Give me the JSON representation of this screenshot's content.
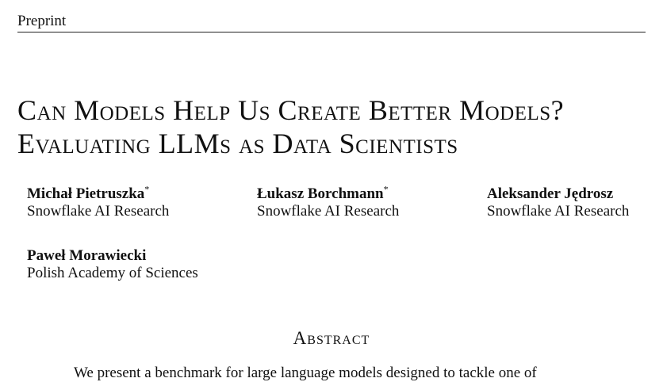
{
  "header": {
    "running_head": "Preprint"
  },
  "paper": {
    "title_line1": "Can Models Help Us Create Better Models?",
    "title_line2": "Evaluating LLMs as Data Scientists",
    "authors": [
      {
        "name": "Michał Pietruszka",
        "mark": "*",
        "affiliation": "Snowflake AI Research"
      },
      {
        "name": "Łukasz Borchmann",
        "mark": "*",
        "affiliation": "Snowflake AI Research"
      },
      {
        "name": "Aleksander Jędrosz",
        "mark": "",
        "affiliation": "Snowflake AI Research"
      },
      {
        "name": "Paweł Morawiecki",
        "mark": "",
        "affiliation": "Polish Academy of Sciences"
      }
    ],
    "abstract_heading": "Abstract",
    "abstract_first_line": "We present a benchmark for large language models designed to tackle one of"
  }
}
